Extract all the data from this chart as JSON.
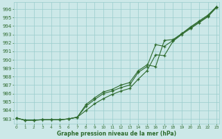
{
  "xlabel": "Graphe pression niveau de la mer (hPa)",
  "ylim": [
    982.4,
    996.8
  ],
  "xlim": [
    -0.3,
    23.3
  ],
  "yticks": [
    983,
    984,
    985,
    986,
    987,
    988,
    989,
    990,
    991,
    992,
    993,
    994,
    995,
    996
  ],
  "xticks": [
    0,
    1,
    2,
    3,
    4,
    5,
    6,
    7,
    8,
    9,
    10,
    11,
    12,
    13,
    14,
    15,
    16,
    17,
    18,
    19,
    20,
    21,
    22,
    23
  ],
  "bg_color": "#cce8e8",
  "grid_color": "#99cccc",
  "line_color": "#2d6a2d",
  "line1": [
    983.1,
    982.85,
    982.85,
    982.9,
    982.9,
    982.9,
    983.0,
    983.2,
    984.5,
    985.3,
    986.0,
    986.3,
    986.7,
    987.0,
    988.5,
    989.2,
    991.8,
    991.6,
    992.3,
    993.1,
    993.8,
    994.5,
    995.2,
    996.3
  ],
  "line2": [
    983.1,
    982.85,
    982.85,
    982.9,
    982.9,
    982.9,
    983.0,
    983.2,
    984.0,
    984.8,
    985.4,
    985.9,
    986.3,
    986.6,
    987.7,
    988.7,
    990.6,
    990.5,
    992.2,
    993.0,
    993.7,
    994.4,
    995.1,
    996.2
  ],
  "line3": [
    983.1,
    982.85,
    982.85,
    982.9,
    982.9,
    982.9,
    983.0,
    983.2,
    984.7,
    985.5,
    986.2,
    986.5,
    987.0,
    987.3,
    988.7,
    989.4,
    989.2,
    992.3,
    992.4,
    993.1,
    993.9,
    994.6,
    995.3,
    996.3
  ]
}
